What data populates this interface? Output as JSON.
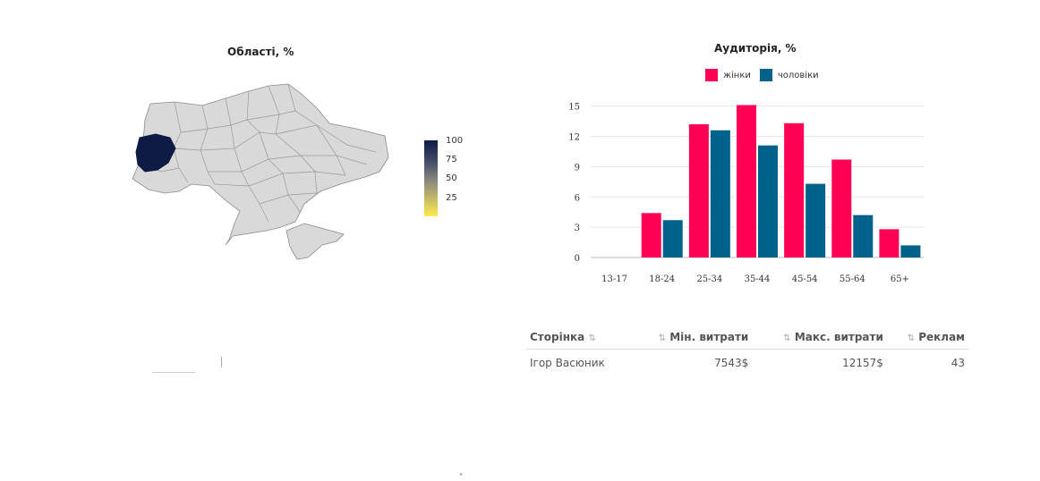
{
  "map": {
    "title": "Області, %",
    "scale_labels": [
      "100",
      "75",
      "50",
      "25"
    ],
    "highlighted_region_value": 100
  },
  "chart_data": {
    "type": "bar",
    "title": "Аудиторія, %",
    "categories": [
      "13-17",
      "18-24",
      "25-34",
      "35-44",
      "45-54",
      "55-64",
      "65+"
    ],
    "series": [
      {
        "name": "жінки",
        "color": "#ff0054",
        "values": [
          0,
          4.4,
          13.2,
          15.1,
          13.3,
          9.7,
          2.8
        ]
      },
      {
        "name": "чоловіки",
        "color": "#00628b",
        "values": [
          0,
          3.7,
          12.6,
          11.1,
          7.3,
          4.2,
          1.2
        ]
      }
    ],
    "yticks": [
      0,
      3,
      6,
      9,
      12,
      15
    ],
    "ylim": [
      0,
      15.5
    ],
    "grid": true,
    "legend": "top"
  },
  "table": {
    "headers": {
      "page": "Сторінка",
      "min": "Мін. витрати",
      "max": "Макс. витрати",
      "ads": "Реклам"
    },
    "rows": [
      {
        "page": "Ігор Васюник",
        "min": "7543$",
        "max": "12157$",
        "ads": "43"
      }
    ]
  }
}
